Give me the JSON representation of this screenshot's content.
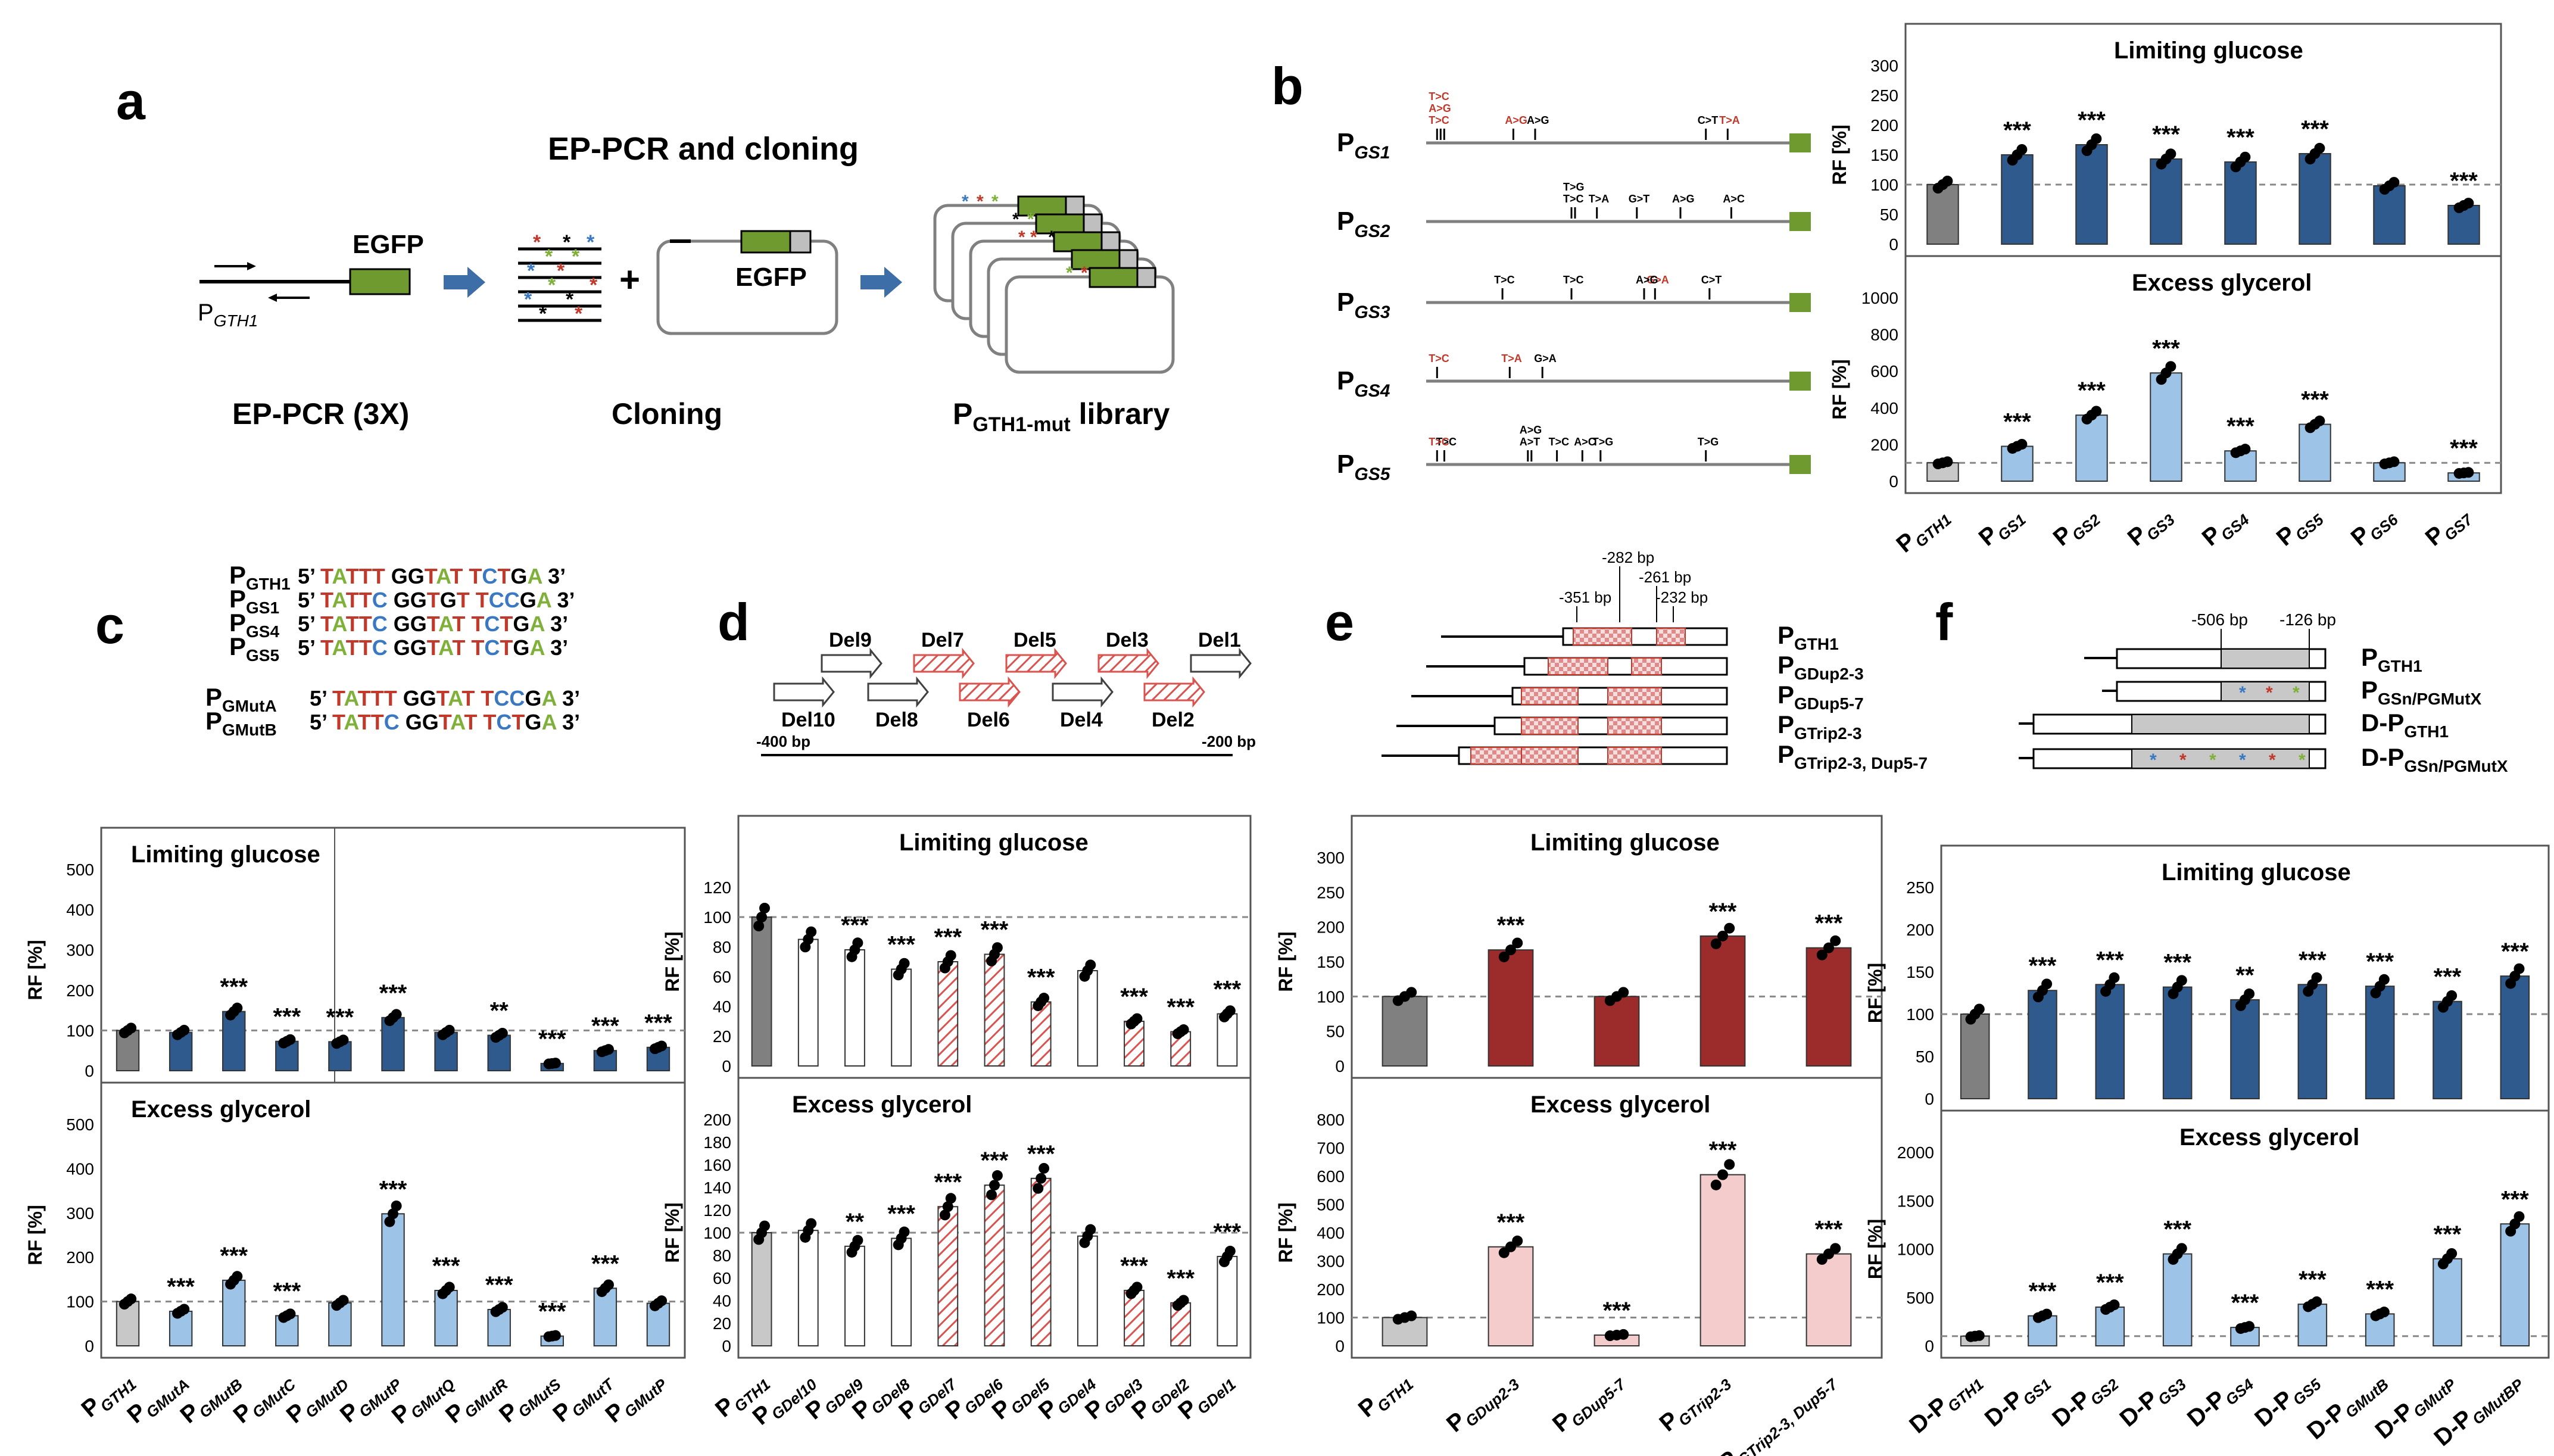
{
  "panels": {
    "a": {
      "letter": "a",
      "title": "EP-PCR and cloning",
      "egfp_left": "EGFP",
      "egfp_right": "EGFP",
      "promoter": "GTH1",
      "cap_pcr": "EP-PCR (3X)",
      "cap_cloning": "Cloning",
      "cap_library_sub": "GTH1-mut",
      "cap_library_tail": " library"
    },
    "b": {
      "letter": "b",
      "promoters": [
        {
          "sub": "GS1",
          "mutations": [
            {
              "label": "T>C",
              "red": true,
              "pos": 0.03
            },
            {
              "label": "A>G",
              "red": true,
              "pos": 0.03
            },
            {
              "label": "T>C",
              "red": true,
              "pos": 0.03
            },
            {
              "label": "A>G",
              "red": true,
              "pos": 0.24
            },
            {
              "label": "A>G",
              "red": false,
              "pos": 0.3
            },
            {
              "label": "C>T",
              "red": false,
              "pos": 0.77
            },
            {
              "label": "T>A",
              "red": true,
              "pos": 0.83
            }
          ]
        },
        {
          "sub": "GS2",
          "mutations": [
            {
              "label": "T>C",
              "red": false,
              "pos": 0.4
            },
            {
              "label": "T>G",
              "red": false,
              "pos": 0.4
            },
            {
              "label": "T>A",
              "red": false,
              "pos": 0.47
            },
            {
              "label": "G>T",
              "red": false,
              "pos": 0.58
            },
            {
              "label": "A>G",
              "red": false,
              "pos": 0.7
            },
            {
              "label": "A>C",
              "red": false,
              "pos": 0.84
            }
          ]
        },
        {
          "sub": "GS3",
          "mutations": [
            {
              "label": "T>C",
              "red": false,
              "pos": 0.21
            },
            {
              "label": "T>C",
              "red": false,
              "pos": 0.4
            },
            {
              "label": "G>A",
              "red": true,
              "pos": 0.63
            },
            {
              "label": "A>G",
              "red": false,
              "pos": 0.6
            },
            {
              "label": "C>T",
              "red": false,
              "pos": 0.78
            }
          ]
        },
        {
          "sub": "GS4",
          "mutations": [
            {
              "label": "T>C",
              "red": true,
              "pos": 0.03
            },
            {
              "label": "T>A",
              "red": true,
              "pos": 0.23
            },
            {
              "label": "G>A",
              "red": false,
              "pos": 0.32
            }
          ]
        },
        {
          "sub": "GS5",
          "mutations": [
            {
              "label": "T>C",
              "red": false,
              "pos": 0.05
            },
            {
              "label": "T>C",
              "red": true,
              "pos": 0.03
            },
            {
              "label": "A>T",
              "red": false,
              "pos": 0.28
            },
            {
              "label": "A>G",
              "red": false,
              "pos": 0.28
            },
            {
              "label": "T>C",
              "red": false,
              "pos": 0.36
            },
            {
              "label": "A>C",
              "red": false,
              "pos": 0.43
            },
            {
              "label": "T>G",
              "red": false,
              "pos": 0.48
            },
            {
              "label": "T>G",
              "red": false,
              "pos": 0.77
            }
          ]
        }
      ]
    },
    "c": {
      "letter": "c",
      "sequences": [
        {
          "name": "GTH1",
          "seq": "TATTT GGTAT TCTGA"
        },
        {
          "name": "GS1",
          "seq": "TATTC GGTGT TCCGA"
        },
        {
          "name": "GS4",
          "seq": "TATTC GGTAT TCTGA"
        },
        {
          "name": "GS5",
          "seq": "TATTC GGTAT TCTGA"
        },
        {
          "name": "GMutA",
          "seq": "TATTT GGTAT TCCGA"
        },
        {
          "name": "GMutB",
          "seq": "TATTC GGTAT TCTGA"
        }
      ],
      "seq_prefix": "5’",
      "seq_suffix": "3’"
    },
    "d": {
      "letter": "d",
      "dels": [
        "Del9",
        "Del7",
        "Del5",
        "Del3",
        "Del1",
        "Del10",
        "Del8",
        "Del6",
        "Del4",
        "Del2"
      ],
      "axis_left": "-400 bp",
      "axis_right": "-200 bp"
    },
    "e": {
      "letter": "e",
      "markers": [
        "-351 bp",
        "-282 bp",
        "-261 bp",
        "-232 bp"
      ],
      "constructs": [
        "GTH1",
        "GDup2-3",
        "GDup5-7",
        "GTrip2-3",
        "GTrip2-3, Dup5-7"
      ]
    },
    "f": {
      "letter": "f",
      "markers": [
        "-506 bp",
        "-126 bp"
      ],
      "constructs": [
        "GTH1",
        "GSn/PGMutX",
        "GTH1",
        "GSn/PGMutX"
      ]
    }
  },
  "colors": {
    "dark_blue": "#2e5a8e",
    "light_blue": "#9dc3e6",
    "dark_red": "#9c2b2b",
    "light_red": "#f4cccc",
    "dark_gray": "#808080",
    "light_gray": "#c8c8c8",
    "green": "#6f9a2f",
    "arrow_blue": "#3d6ea8",
    "hatch_red": "#d9534f"
  },
  "chart_data": [
    {
      "id": "b_top",
      "type": "bar",
      "title": "Limiting glucose",
      "ylabel": "RF [%]",
      "categories": [
        "GTH1",
        "GS1",
        "GS2",
        "GS3",
        "GS4",
        "GS5",
        "GS6",
        "GS7"
      ],
      "values": [
        100,
        150,
        167,
        143,
        138,
        152,
        98,
        65
      ],
      "sig": [
        "",
        "***",
        "***",
        "***",
        "***",
        "***",
        "",
        "***"
      ],
      "ylim": [
        0,
        300
      ],
      "yticks": [
        0,
        50,
        100,
        150,
        200,
        250,
        300
      ]
    },
    {
      "id": "b_bottom",
      "type": "bar",
      "title": "Excess glycerol",
      "ylabel": "RF [%]",
      "categories": [
        "GTH1",
        "GS1",
        "GS2",
        "GS3",
        "GS4",
        "GS5",
        "GS6",
        "GS7"
      ],
      "values": [
        100,
        190,
        360,
        590,
        165,
        310,
        100,
        45
      ],
      "sig": [
        "",
        "***",
        "***",
        "***",
        "***",
        "***",
        "",
        "***"
      ],
      "ylim": [
        0,
        1000
      ],
      "yticks": [
        0,
        200,
        400,
        600,
        800,
        1000
      ],
      "xlabels": [
        [
          "P",
          "GTH1"
        ],
        [
          "P",
          "GS1"
        ],
        [
          "P",
          "GS2"
        ],
        [
          "P",
          "GS3"
        ],
        [
          "P",
          "GS4"
        ],
        [
          "P",
          "GS5"
        ],
        [
          "P",
          "GS6"
        ],
        [
          "P",
          "GS7"
        ]
      ]
    },
    {
      "id": "c_top",
      "type": "bar",
      "title": "Limiting glucose",
      "ylabel": "RF [%]",
      "categories": [
        "GTH1",
        "GMutA",
        "GMutB",
        "GMutC",
        "GMutD",
        "GMutP",
        "GMutQ",
        "GMutR",
        "GMutS",
        "GMutT",
        "GMutP"
      ],
      "values": [
        100,
        95,
        147,
        73,
        72,
        132,
        95,
        88,
        18,
        50,
        58
      ],
      "sig": [
        "",
        "",
        "***",
        "***",
        "***",
        "***",
        "",
        "**",
        "***",
        "***",
        "***"
      ],
      "ylim": [
        0,
        500
      ],
      "yticks": [
        0,
        100,
        200,
        300,
        400,
        500
      ]
    },
    {
      "id": "c_bottom",
      "type": "bar",
      "title": "Excess glycerol",
      "ylabel": "RF [%]",
      "categories": [
        "GTH1",
        "GMutA",
        "GMutB",
        "GMutC",
        "GMutD",
        "GMutP",
        "GMutQ",
        "GMutR",
        "GMutS",
        "GMutT",
        "GMutP"
      ],
      "values": [
        100,
        78,
        148,
        68,
        97,
        298,
        125,
        82,
        22,
        130,
        96
      ],
      "sig": [
        "",
        "***",
        "***",
        "***",
        "",
        "***",
        "***",
        "***",
        "***",
        "***",
        ""
      ],
      "ylim": [
        0,
        500
      ],
      "yticks": [
        0,
        100,
        200,
        300,
        400,
        500
      ],
      "xlabels": [
        [
          "P",
          "GTH1"
        ],
        [
          "P",
          "GMutA"
        ],
        [
          "P",
          "GMutB"
        ],
        [
          "P",
          "GMutC"
        ],
        [
          "P",
          "GMutD"
        ],
        [
          "P",
          "GMutP"
        ],
        [
          "P",
          "GMutQ"
        ],
        [
          "P",
          "GMutR"
        ],
        [
          "P",
          "GMutS"
        ],
        [
          "P",
          "GMutT"
        ],
        [
          "P",
          "GMutP"
        ]
      ]
    },
    {
      "id": "d_top",
      "type": "bar",
      "title": "Limiting glucose",
      "ylabel": "RF [%]",
      "categories": [
        "GTH1",
        "GDel10",
        "GDel9",
        "GDel8",
        "GDel7",
        "GDel6",
        "GDel5",
        "GDel4",
        "GDel3",
        "GDel2",
        "GDel1"
      ],
      "values": [
        100,
        85,
        78,
        65,
        70,
        75,
        43,
        64,
        30,
        23,
        35
      ],
      "sig": [
        "",
        "",
        "***",
        "***",
        "***",
        "***",
        "***",
        "",
        "***",
        "***",
        "***"
      ],
      "ylim": [
        0,
        140
      ],
      "yticks": [
        0,
        20,
        40,
        60,
        80,
        100,
        120
      ]
    },
    {
      "id": "d_bottom",
      "type": "bar",
      "title": "Excess glycerol",
      "ylabel": "RF [%]",
      "categories": [
        "GTH1",
        "GDel10",
        "GDel9",
        "GDel8",
        "GDel7",
        "GDel6",
        "GDel5",
        "GDel4",
        "GDel3",
        "GDel2",
        "GDel1"
      ],
      "values": [
        100,
        102,
        88,
        95,
        123,
        142,
        148,
        97,
        49,
        38,
        79
      ],
      "sig": [
        "",
        "",
        "**",
        "***",
        "***",
        "***",
        "***",
        "",
        "***",
        "***",
        "***"
      ],
      "ylim": [
        0,
        200
      ],
      "yticks": [
        0,
        20,
        40,
        60,
        80,
        100,
        120,
        140,
        160,
        180,
        200
      ],
      "xlabels": [
        [
          "P",
          "GTH1"
        ],
        [
          "P",
          "GDel10"
        ],
        [
          "P",
          "GDel9"
        ],
        [
          "P",
          "GDel8"
        ],
        [
          "P",
          "GDel7"
        ],
        [
          "P",
          "GDel6"
        ],
        [
          "P",
          "GDel5"
        ],
        [
          "P",
          "GDel4"
        ],
        [
          "P",
          "GDel3"
        ],
        [
          "P",
          "GDel2"
        ],
        [
          "P",
          "GDel1"
        ]
      ]
    },
    {
      "id": "e_top",
      "type": "bar",
      "title": "Limiting glucose",
      "ylabel": "RF [%]",
      "categories": [
        "GTH1",
        "GDup2-3",
        "GDup5-7",
        "GTrip2-3",
        "GTrip2-3, Dup5-7"
      ],
      "values": [
        100,
        167,
        100,
        187,
        170
      ],
      "sig": [
        "",
        "***",
        "",
        "***",
        "***"
      ],
      "ylim": [
        0,
        300
      ],
      "yticks": [
        0,
        50,
        100,
        150,
        200,
        250,
        300
      ]
    },
    {
      "id": "e_bottom",
      "type": "bar",
      "title": "Excess glycerol",
      "ylabel": "RF [%]",
      "categories": [
        "GTH1",
        "GDup2-3",
        "GDup5-7",
        "GTrip2-3",
        "GTrip2-3, Dup5-7"
      ],
      "values": [
        100,
        350,
        38,
        605,
        325
      ],
      "sig": [
        "",
        "***",
        "***",
        "***",
        "***"
      ],
      "ylim": [
        0,
        800
      ],
      "yticks": [
        0,
        100,
        200,
        300,
        400,
        500,
        600,
        700,
        800
      ],
      "xlabels": [
        [
          "P",
          "GTH1"
        ],
        [
          "P",
          "GDup2-3"
        ],
        [
          "P",
          "GDup5-7"
        ],
        [
          "P",
          "GTrip2-3"
        ],
        [
          "P",
          "GTrip2-3,",
          "Dup5-7"
        ]
      ]
    },
    {
      "id": "f_top",
      "type": "bar",
      "title": "Limiting glucose",
      "ylabel": "RF [%]",
      "categories": [
        "GTH1",
        "GS1",
        "GS2",
        "GS3",
        "GS4",
        "GS5",
        "GMutB",
        "GMutP",
        "GMutBP"
      ],
      "values": [
        100,
        128,
        135,
        132,
        117,
        135,
        133,
        115,
        145
      ],
      "sig": [
        "",
        "***",
        "***",
        "***",
        "**",
        "***",
        "***",
        "***",
        "***"
      ],
      "ylim": [
        0,
        250
      ],
      "yticks": [
        0,
        50,
        100,
        150,
        200,
        250
      ]
    },
    {
      "id": "f_bottom",
      "type": "bar",
      "title": "Excess glycerol",
      "ylabel": "RF [%]",
      "categories": [
        "GTH1",
        "GS1",
        "GS2",
        "GS3",
        "GS4",
        "GS5",
        "GMutB",
        "GMutP",
        "GMutBP"
      ],
      "values": [
        100,
        310,
        400,
        950,
        190,
        430,
        330,
        900,
        1260
      ],
      "sig": [
        "",
        "***",
        "***",
        "***",
        "***",
        "***",
        "***",
        "***",
        "***"
      ],
      "ylim": [
        0,
        2000
      ],
      "yticks": [
        0,
        500,
        1000,
        1500,
        2000
      ],
      "xlabels": [
        [
          "D-P",
          "GTH1"
        ],
        [
          "D-P",
          "GS1"
        ],
        [
          "D-P",
          "GS2"
        ],
        [
          "D-P",
          "GS3"
        ],
        [
          "D-P",
          "GS4"
        ],
        [
          "D-P",
          "GS5"
        ],
        [
          "D-P",
          "GMutB"
        ],
        [
          "D-P",
          "GMutP"
        ],
        [
          "D-P",
          "GMutBP"
        ]
      ]
    }
  ]
}
